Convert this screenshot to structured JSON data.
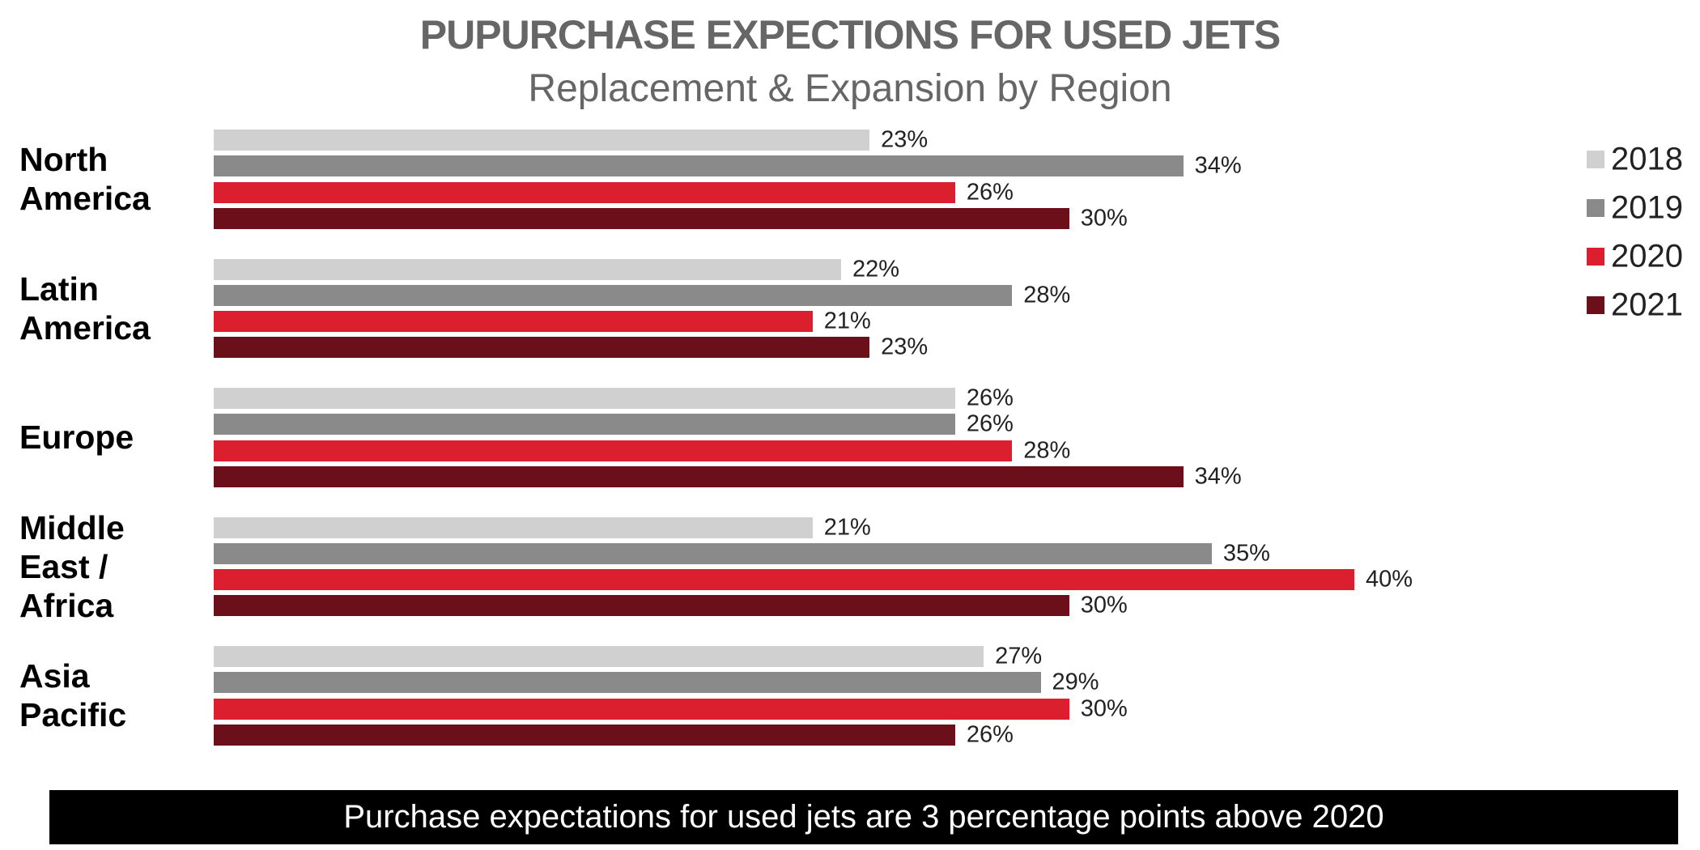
{
  "chart_data": {
    "type": "bar",
    "orientation": "horizontal",
    "title": "PUPURCHASE EXPECTIONS FOR USED JETS",
    "subtitle": "Replacement & Expansion by Region",
    "categories": [
      "North America",
      "Latin America",
      "Europe",
      "Middle East / Africa",
      "Asia Pacific"
    ],
    "series": [
      {
        "name": "2018",
        "color": "#d0d0d0",
        "values": [
          23,
          22,
          26,
          21,
          27
        ],
        "value_labels": [
          "23%",
          "22%",
          "26%",
          "21%",
          "27%"
        ]
      },
      {
        "name": "2019",
        "color": "#8a8a8a",
        "values": [
          34,
          28,
          26,
          35,
          29
        ],
        "value_labels": [
          "34%",
          "28%",
          "26%",
          "35%",
          "29%"
        ]
      },
      {
        "name": "2020",
        "color": "#dc1f2e",
        "values": [
          26,
          21,
          28,
          40,
          30
        ],
        "value_labels": [
          "26%",
          "21%",
          "28%",
          "40%",
          "30%"
        ]
      },
      {
        "name": "2021",
        "color": "#6b0f1a",
        "values": [
          30,
          23,
          34,
          30,
          26
        ],
        "value_labels": [
          "30%",
          "23%",
          "34%",
          "30%",
          "26%"
        ]
      }
    ],
    "legend_position": "top-right",
    "footnote": "Purchase expectations for used jets are 3 percentage points above 2020"
  }
}
